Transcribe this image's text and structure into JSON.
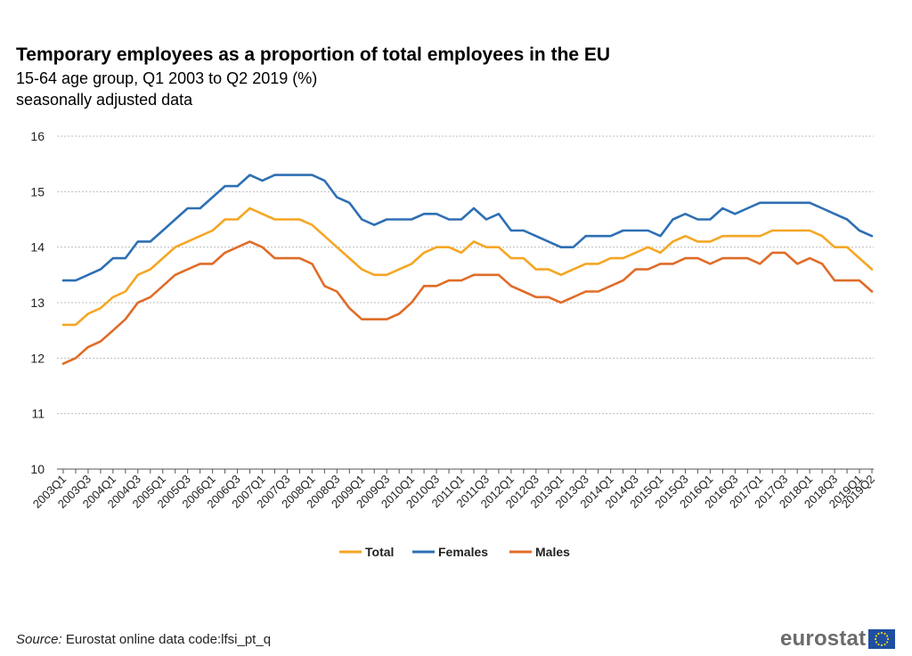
{
  "title": "Temporary employees as a proportion of total employees in the EU",
  "subtitle_line1": "15-64 age group, Q1 2003 to Q2 2019 (%)",
  "subtitle_line2": "seasonally adjusted data",
  "source": {
    "label": "Source:",
    "text": "Eurostat online data code:lfsi_pt_q"
  },
  "logo": {
    "text": "eurostat"
  },
  "chart_data": {
    "type": "line",
    "title": "Temporary employees as a proportion of total employees in the EU",
    "xlabel": "",
    "ylabel": "",
    "ylim": [
      10,
      16
    ],
    "yticks": [
      "10",
      "11",
      "12",
      "13",
      "14",
      "15",
      "16"
    ],
    "grid": true,
    "legend_position": "bottom",
    "x": [
      "2003Q1",
      "2003Q2",
      "2003Q3",
      "2003Q4",
      "2004Q1",
      "2004Q2",
      "2004Q3",
      "2004Q4",
      "2005Q1",
      "2005Q2",
      "2005Q3",
      "2005Q4",
      "2006Q1",
      "2006Q2",
      "2006Q3",
      "2006Q4",
      "2007Q1",
      "2007Q2",
      "2007Q3",
      "2007Q4",
      "2008Q1",
      "2008Q2",
      "2008Q3",
      "2008Q4",
      "2009Q1",
      "2009Q2",
      "2009Q3",
      "2009Q4",
      "2010Q1",
      "2010Q2",
      "2010Q3",
      "2010Q4",
      "2011Q1",
      "2011Q2",
      "2011Q3",
      "2011Q4",
      "2012Q1",
      "2012Q2",
      "2012Q3",
      "2012Q4",
      "2013Q1",
      "2013Q2",
      "2013Q3",
      "2013Q4",
      "2014Q1",
      "2014Q2",
      "2014Q3",
      "2014Q4",
      "2015Q1",
      "2015Q2",
      "2015Q3",
      "2015Q4",
      "2016Q1",
      "2016Q2",
      "2016Q3",
      "2016Q4",
      "2017Q1",
      "2017Q2",
      "2017Q3",
      "2017Q4",
      "2018Q1",
      "2018Q2",
      "2018Q3",
      "2018Q4",
      "2019Q1",
      "2019Q2"
    ],
    "xtick_labels": [
      "2003Q1",
      "2003Q3",
      "2004Q1",
      "2004Q3",
      "2005Q1",
      "2005Q3",
      "2006Q1",
      "2006Q3",
      "2007Q1",
      "2007Q3",
      "2008Q1",
      "2008Q3",
      "2009Q1",
      "2009Q3",
      "2010Q1",
      "2010Q3",
      "2011Q1",
      "2011Q3",
      "2012Q1",
      "2012Q3",
      "2013Q1",
      "2013Q3",
      "2014Q1",
      "2014Q3",
      "2015Q1",
      "2015Q3",
      "2016Q1",
      "2016Q3",
      "2017Q1",
      "2017Q3",
      "2018Q1",
      "2018Q3",
      "2019Q1",
      "2019Q2"
    ],
    "series": [
      {
        "name": "Total",
        "color": "#f5a623",
        "values": [
          12.6,
          12.6,
          12.8,
          12.9,
          13.1,
          13.2,
          13.5,
          13.6,
          13.8,
          14.0,
          14.1,
          14.2,
          14.3,
          14.5,
          14.5,
          14.7,
          14.6,
          14.5,
          14.5,
          14.5,
          14.4,
          14.2,
          14.0,
          13.8,
          13.6,
          13.5,
          13.5,
          13.6,
          13.7,
          13.9,
          14.0,
          14.0,
          13.9,
          14.1,
          14.0,
          14.0,
          13.8,
          13.8,
          13.6,
          13.6,
          13.5,
          13.6,
          13.7,
          13.7,
          13.8,
          13.8,
          13.9,
          14.0,
          13.9,
          14.1,
          14.2,
          14.1,
          14.1,
          14.2,
          14.2,
          14.2,
          14.2,
          14.3,
          14.3,
          14.3,
          14.3,
          14.2,
          14.0,
          14.0,
          13.8,
          13.6
        ]
      },
      {
        "name": "Females",
        "color": "#2e6fb3",
        "values": [
          13.4,
          13.4,
          13.5,
          13.6,
          13.8,
          13.8,
          14.1,
          14.1,
          14.3,
          14.5,
          14.7,
          14.7,
          14.9,
          15.1,
          15.1,
          15.3,
          15.2,
          15.3,
          15.3,
          15.3,
          15.3,
          15.2,
          14.9,
          14.8,
          14.5,
          14.4,
          14.5,
          14.5,
          14.5,
          14.6,
          14.6,
          14.5,
          14.5,
          14.7,
          14.5,
          14.6,
          14.3,
          14.3,
          14.2,
          14.1,
          14.0,
          14.0,
          14.2,
          14.2,
          14.2,
          14.3,
          14.3,
          14.3,
          14.2,
          14.5,
          14.6,
          14.5,
          14.5,
          14.7,
          14.6,
          14.7,
          14.8,
          14.8,
          14.8,
          14.8,
          14.8,
          14.7,
          14.6,
          14.5,
          14.3,
          14.2
        ]
      },
      {
        "name": "Males",
        "color": "#e06c28",
        "values": [
          11.9,
          12.0,
          12.2,
          12.3,
          12.5,
          12.7,
          13.0,
          13.1,
          13.3,
          13.5,
          13.6,
          13.7,
          13.7,
          13.9,
          14.0,
          14.1,
          14.0,
          13.8,
          13.8,
          13.8,
          13.7,
          13.3,
          13.2,
          12.9,
          12.7,
          12.7,
          12.7,
          12.8,
          13.0,
          13.3,
          13.3,
          13.4,
          13.4,
          13.5,
          13.5,
          13.5,
          13.3,
          13.2,
          13.1,
          13.1,
          13.0,
          13.1,
          13.2,
          13.2,
          13.3,
          13.4,
          13.6,
          13.6,
          13.7,
          13.7,
          13.8,
          13.8,
          13.7,
          13.8,
          13.8,
          13.8,
          13.7,
          13.9,
          13.9,
          13.7,
          13.8,
          13.7,
          13.4,
          13.4,
          13.4,
          13.2
        ]
      }
    ]
  }
}
